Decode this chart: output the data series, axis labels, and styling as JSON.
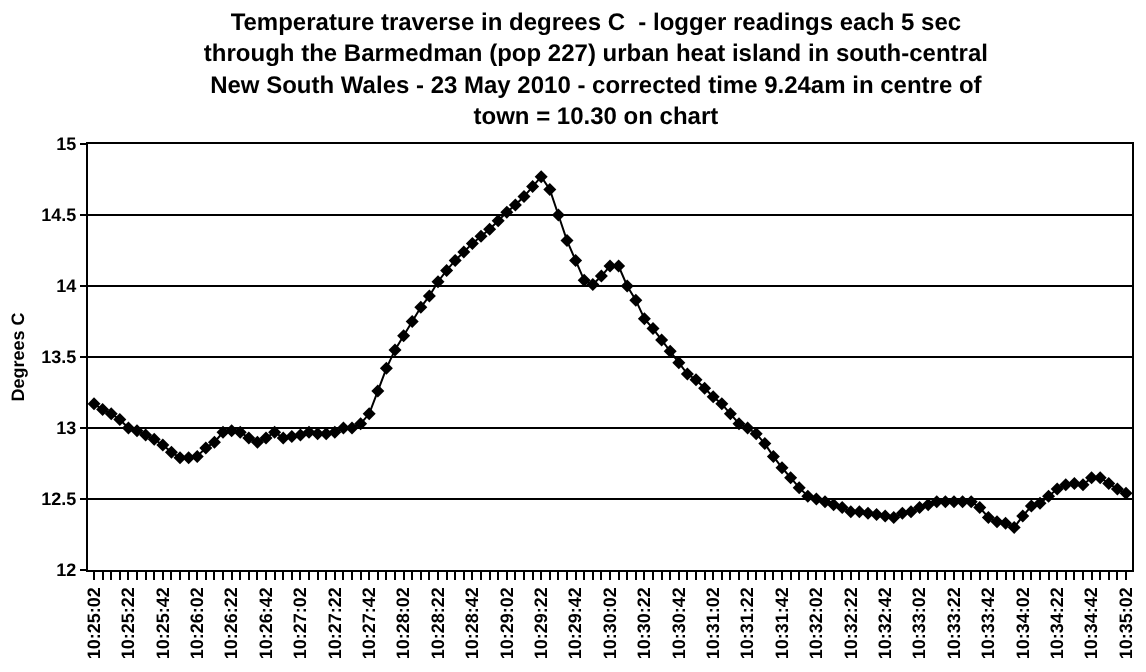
{
  "chart_data": {
    "type": "line",
    "title": "Temperature traverse in degrees C  - logger readings each 5 sec\nthrough the Barmedman (pop 227) urban heat island in south-central\nNew South Wales - 23 May 2010 - corrected time 9.24am in centre of\ntown = 10.30 on chart",
    "ylabel": "Degrees C",
    "categories": [
      "10:25:02",
      null,
      null,
      null,
      "10:25:22",
      null,
      null,
      null,
      "10:25:42",
      null,
      null,
      null,
      "10:26:02",
      null,
      null,
      null,
      "10:26:22",
      null,
      null,
      null,
      "10:26:42",
      null,
      null,
      null,
      "10:27:02",
      null,
      null,
      null,
      "10:27:22",
      null,
      null,
      null,
      "10:27:42",
      null,
      null,
      null,
      "10:28:02",
      null,
      null,
      null,
      "10:28:22",
      null,
      null,
      null,
      "10:28:42",
      null,
      null,
      null,
      "10:29:02",
      null,
      null,
      null,
      "10:29:22",
      null,
      null,
      null,
      "10:29:42",
      null,
      null,
      null,
      "10:30:02",
      null,
      null,
      null,
      "10:30:22",
      null,
      null,
      null,
      "10:30:42",
      null,
      null,
      null,
      "10:31:02",
      null,
      null,
      null,
      "10:31:22",
      null,
      null,
      null,
      "10:31:42",
      null,
      null,
      null,
      "10:32:02",
      null,
      null,
      null,
      "10:32:22",
      null,
      null,
      null,
      "10:32:42",
      null,
      null,
      null,
      "10:33:02",
      null,
      null,
      null,
      "10:33:22",
      null,
      null,
      null,
      "10:33:42",
      null,
      null,
      null,
      "10:34:02",
      null,
      null,
      null,
      "10:34:22",
      null,
      null,
      null,
      "10:34:42",
      null,
      null,
      null,
      "10:35:02"
    ],
    "series": [
      {
        "color": "#000000",
        "values": [
          13.17,
          13.13,
          13.1,
          13.06,
          13.0,
          12.98,
          12.95,
          12.92,
          12.88,
          12.83,
          12.79,
          12.79,
          12.8,
          12.86,
          12.9,
          12.97,
          12.98,
          12.97,
          12.93,
          12.9,
          12.93,
          12.97,
          12.93,
          12.94,
          12.95,
          12.97,
          12.96,
          12.96,
          12.97,
          13.0,
          13.0,
          13.03,
          13.1,
          13.26,
          13.42,
          13.55,
          13.65,
          13.75,
          13.85,
          13.93,
          14.03,
          14.11,
          14.18,
          14.24,
          14.3,
          14.35,
          14.4,
          14.46,
          14.52,
          14.57,
          14.63,
          14.7,
          14.77,
          14.68,
          14.5,
          14.32,
          14.18,
          14.04,
          14.01,
          14.07,
          14.14,
          14.14,
          14.0,
          13.9,
          13.77,
          13.7,
          13.62,
          13.54,
          13.46,
          13.38,
          13.34,
          13.28,
          13.22,
          13.17,
          13.1,
          13.03,
          13.0,
          12.96,
          12.89,
          12.8,
          12.72,
          12.65,
          12.58,
          12.52,
          12.5,
          12.48,
          12.46,
          12.44,
          12.41,
          12.41,
          12.4,
          12.39,
          12.38,
          12.37,
          12.4,
          12.41,
          12.44,
          12.46,
          12.48,
          12.48,
          12.48,
          12.48,
          12.48,
          12.44,
          12.37,
          12.34,
          12.33,
          12.3,
          12.38,
          12.45,
          12.47,
          12.52,
          12.57,
          12.6,
          12.61,
          12.6,
          12.65,
          12.65,
          12.61,
          12.57,
          12.54
        ]
      }
    ],
    "ylim": [
      12,
      15
    ],
    "yticks": [
      12,
      12.5,
      13,
      13.5,
      14,
      14.5,
      15
    ],
    "grid": "y",
    "marker": "diamond",
    "line_style": "solid"
  }
}
